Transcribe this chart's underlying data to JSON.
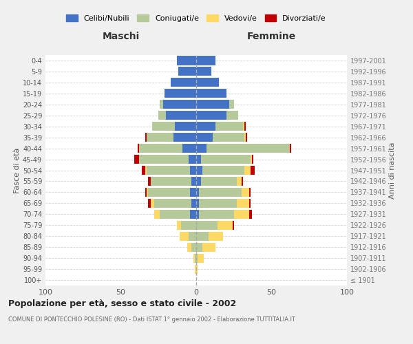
{
  "age_groups": [
    "100+",
    "95-99",
    "90-94",
    "85-89",
    "80-84",
    "75-79",
    "70-74",
    "65-69",
    "60-64",
    "55-59",
    "50-54",
    "45-49",
    "40-44",
    "35-39",
    "30-34",
    "25-29",
    "20-24",
    "15-19",
    "10-14",
    "5-9",
    "0-4"
  ],
  "birth_years": [
    "≤ 1901",
    "1902-1906",
    "1907-1911",
    "1912-1916",
    "1917-1921",
    "1922-1926",
    "1927-1931",
    "1932-1936",
    "1937-1941",
    "1942-1946",
    "1947-1951",
    "1952-1956",
    "1957-1961",
    "1962-1966",
    "1967-1971",
    "1972-1976",
    "1977-1981",
    "1982-1986",
    "1987-1991",
    "1992-1996",
    "1997-2001"
  ],
  "maschi": {
    "celibi": [
      0,
      0,
      0,
      0,
      0,
      0,
      4,
      3,
      4,
      3,
      4,
      5,
      9,
      15,
      14,
      20,
      22,
      21,
      17,
      12,
      13
    ],
    "coniugati": [
      0,
      0,
      1,
      3,
      5,
      10,
      20,
      25,
      28,
      27,
      29,
      33,
      29,
      18,
      15,
      5,
      2,
      0,
      0,
      0,
      0
    ],
    "vedovi": [
      0,
      1,
      1,
      3,
      6,
      3,
      4,
      2,
      1,
      0,
      1,
      0,
      0,
      0,
      0,
      0,
      0,
      0,
      0,
      0,
      0
    ],
    "divorziati": [
      0,
      0,
      0,
      0,
      0,
      0,
      0,
      2,
      1,
      2,
      2,
      3,
      1,
      1,
      0,
      0,
      0,
      0,
      0,
      0,
      0
    ]
  },
  "femmine": {
    "nubili": [
      0,
      0,
      0,
      0,
      0,
      0,
      2,
      2,
      2,
      3,
      4,
      3,
      7,
      11,
      13,
      20,
      22,
      20,
      15,
      10,
      13
    ],
    "coniugate": [
      0,
      0,
      1,
      4,
      8,
      14,
      23,
      25,
      28,
      24,
      28,
      33,
      55,
      21,
      18,
      8,
      3,
      0,
      0,
      0,
      0
    ],
    "vedove": [
      0,
      1,
      4,
      9,
      10,
      10,
      10,
      8,
      5,
      3,
      4,
      1,
      0,
      1,
      1,
      0,
      0,
      0,
      0,
      0,
      0
    ],
    "divorziate": [
      0,
      0,
      0,
      0,
      0,
      1,
      2,
      1,
      1,
      1,
      3,
      1,
      1,
      1,
      1,
      0,
      0,
      0,
      0,
      0,
      0
    ]
  },
  "colors": {
    "celibi_nubili": "#4472C4",
    "coniugati": "#B5C99A",
    "vedovi": "#FFD966",
    "divorziati": "#C00000"
  },
  "title": "Popolazione per età, sesso e stato civile - 2002",
  "subtitle": "COMUNE DI PONTECCHIO POLESINE (RO) - Dati ISTAT 1° gennaio 2002 - Elaborazione TUTTITALIA.IT",
  "xlabel_left": "Maschi",
  "xlabel_right": "Femmine",
  "ylabel_left": "Fasce di età",
  "ylabel_right": "Anni di nascita",
  "xlim": 100,
  "legend_labels": [
    "Celibi/Nubili",
    "Coniugati/e",
    "Vedovi/e",
    "Divorziati/e"
  ],
  "bg_color": "#f0f0f0",
  "plot_bg": "#ffffff",
  "grid_color": "#cccccc"
}
